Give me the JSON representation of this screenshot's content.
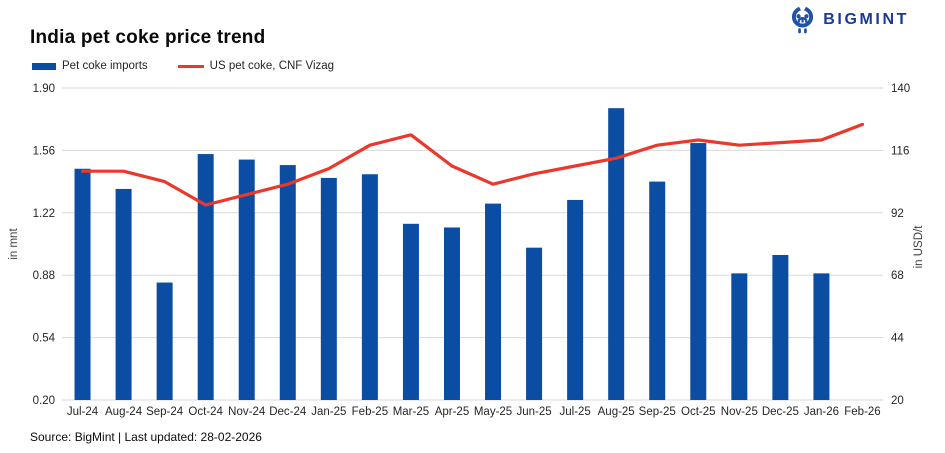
{
  "header": {
    "title": "India pet coke price trend",
    "brand": "BIGMINT"
  },
  "brand_colors": {
    "icon": "#1e52ab",
    "wordmark": "#1b3a97"
  },
  "legend": {
    "items": [
      {
        "label": "Pet coke imports",
        "marker": "bar-swatch",
        "color": "#0b4da2"
      },
      {
        "label": "US pet coke, CNF Vizag",
        "marker": "line-swatch",
        "color": "#ec382c"
      }
    ]
  },
  "footer": {
    "source": "Source: BigMint | Last updated: 28-02-2026"
  },
  "chart_data": {
    "type": "combo",
    "title": "India pet coke price trend",
    "categories": [
      "Jul-24",
      "Aug-24",
      "Sep-24",
      "Oct-24",
      "Nov-24",
      "Dec-24",
      "Jan-25",
      "Feb-25",
      "Mar-25",
      "Apr-25",
      "May-25",
      "Jun-25",
      "Jul-25",
      "Aug-25",
      "Sep-25",
      "Oct-25",
      "Nov-25",
      "Dec-25",
      "Jan-26",
      "Feb-26"
    ],
    "series": [
      {
        "name": "Pet coke imports",
        "type": "bar",
        "axis": "left",
        "unit": "mnt",
        "color": "#0b4da2",
        "values": [
          1.46,
          1.35,
          0.84,
          1.54,
          1.51,
          1.48,
          1.41,
          1.43,
          1.16,
          1.14,
          1.27,
          1.03,
          1.29,
          1.79,
          1.39,
          1.6,
          0.89,
          0.99,
          0.89,
          null
        ]
      },
      {
        "name": "US pet coke, CNF Vizag",
        "type": "line",
        "axis": "right",
        "unit": "USD/t",
        "color": "#ec382c",
        "values": [
          108,
          108,
          104,
          95,
          99,
          103,
          109,
          118,
          122,
          110,
          103,
          107,
          110,
          113,
          118,
          120,
          118,
          119,
          120,
          126
        ]
      }
    ],
    "left_axis": {
      "title": "in mnt",
      "min": 0.2,
      "max": 1.9,
      "ticks": [
        "1.90",
        "1.56",
        "1.22",
        "0.88",
        "0.54",
        "0.20"
      ]
    },
    "right_axis": {
      "title": "in USD/t",
      "min": 20,
      "max": 140,
      "ticks": [
        "140",
        "116",
        "92",
        "68",
        "44",
        "20"
      ]
    },
    "grid": {
      "show": true,
      "color": "#d9d9d9"
    },
    "legend_position": "top-left",
    "text_color": "#262626",
    "axis_title_color": "#404040"
  }
}
